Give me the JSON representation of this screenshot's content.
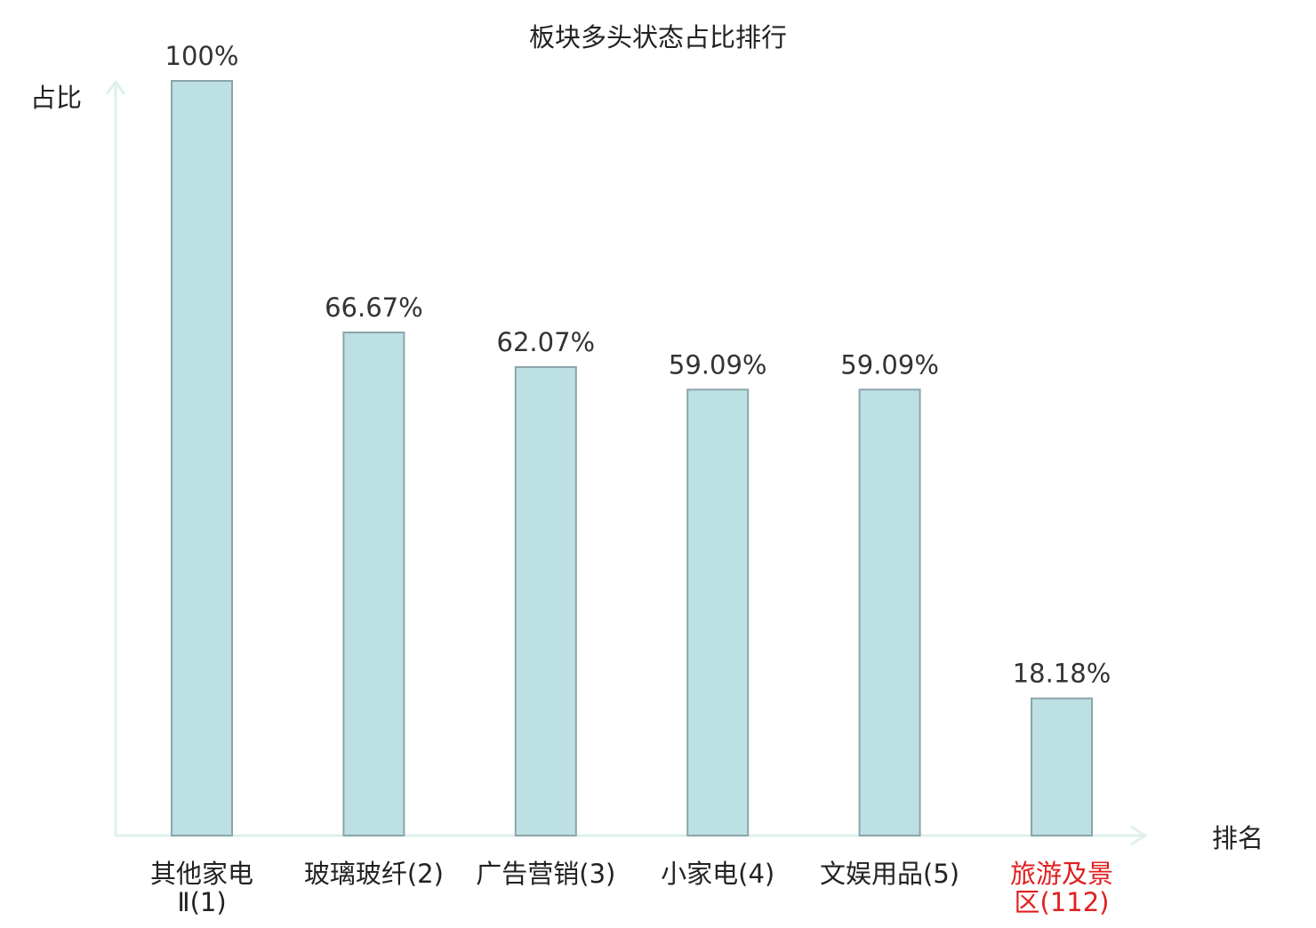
{
  "chart_data": {
    "type": "bar",
    "title": "板块多头状态占比排行",
    "ylabel": "占比",
    "xlabel": "排名",
    "ylim": [
      0,
      100
    ],
    "value_suffix": "%",
    "categories": [
      {
        "label": "其他家电",
        "label2": "Ⅱ(1)",
        "highlight": false
      },
      {
        "label": "玻璃玻纤(2)",
        "highlight": false
      },
      {
        "label": "广告营销(3)",
        "highlight": false
      },
      {
        "label": "小家电(4)",
        "highlight": false
      },
      {
        "label": "文娱用品(5)",
        "highlight": false
      },
      {
        "label": "旅游及景",
        "label2": "区(112)",
        "highlight": true
      }
    ],
    "values": [
      100,
      66.67,
      62.07,
      59.09,
      59.09,
      18.18
    ],
    "value_labels": [
      "100%",
      "66.67%",
      "62.07%",
      "59.09%",
      "59.09%",
      "18.18%"
    ],
    "colors": {
      "bar_fill": "#bce0e3",
      "bar_stroke": "#8aa6a9",
      "axis": "#dff0ee",
      "text": "#333333",
      "highlight_text": "#e02020"
    },
    "grid": false,
    "legend": "none"
  }
}
